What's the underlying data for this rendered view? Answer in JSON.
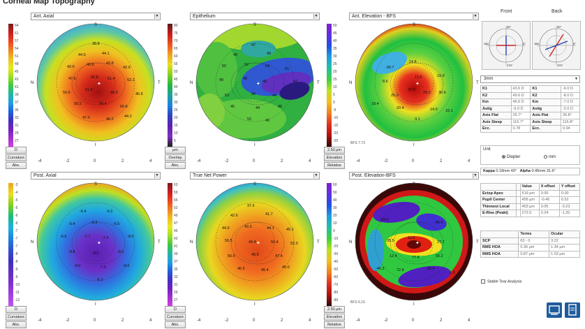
{
  "window_title": "Corneal Map Topography",
  "maps": [
    {
      "id": "ant-axial",
      "title": "Ant. Axial",
      "scale": [
        "64",
        "61",
        "57",
        "54",
        "51",
        "48",
        "45",
        "43",
        "41",
        "39",
        "37",
        "35",
        "33",
        "31",
        "29",
        "27"
      ],
      "buttons": [
        "D",
        "Curvature",
        "Abs."
      ],
      "cardinal": {
        "top": "S",
        "left": "N",
        "right": "T",
        "bottom": "I"
      },
      "labels": [
        "38.8",
        "44.5",
        "44.1",
        "42.6",
        "40.8",
        "43.8",
        "42.9",
        "47.6",
        "56.8",
        "51.4",
        "52.2",
        "50.6",
        "51.6",
        "49.9",
        "46.6",
        "50.2",
        "54.4",
        "50.8",
        "47.0",
        "46.2",
        "44.2"
      ],
      "axis_ticks": [
        "-4",
        "-2",
        "0",
        "2",
        "4"
      ],
      "note": ""
    },
    {
      "id": "epithelium",
      "title": "Epithelium",
      "scale": [
        "80",
        "75",
        "70",
        "65",
        "60",
        "55",
        "50",
        "45",
        "40",
        "35",
        "30",
        "25",
        "20",
        "15",
        "10",
        "5"
      ],
      "buttons": [
        "μm",
        "Overlay",
        "Abs."
      ],
      "cardinal": {
        "top": "S",
        "left": "N",
        "right": "T",
        "bottom": "I"
      },
      "labels": [
        "47",
        "49",
        "49",
        "50",
        "52",
        "54",
        "51",
        "49",
        "48",
        "48",
        "47",
        "53",
        "56",
        "48",
        "45",
        "44",
        "48",
        "52",
        "49"
      ],
      "axis_ticks": [
        "-4",
        "-2",
        "0",
        "2",
        "4"
      ],
      "note": ""
    },
    {
      "id": "ant-elevation",
      "title": "Ant. Elevation - BFS",
      "scale": [
        "50",
        "45",
        "40",
        "35",
        "30",
        "25",
        "20",
        "15",
        "10",
        "5",
        "0",
        "-5",
        "-10",
        "-15",
        "-20",
        "-25"
      ],
      "buttons": [
        "2.50 μm",
        "Elevation",
        "Relative"
      ],
      "cardinal": {
        "top": "S",
        "left": "N",
        "right": "T",
        "bottom": "I"
      },
      "labels": [
        "-26.7",
        "-14.8",
        "8.6",
        "11.0",
        "19.9",
        "32.0",
        "29.3",
        "25.0",
        "30.6",
        "20.4",
        "14.0",
        "18.4",
        "15.1",
        "3.1"
      ],
      "axis_ticks": [
        "-4",
        "-2",
        "0",
        "2",
        "4"
      ],
      "note": "BFS 7.73"
    },
    {
      "id": "post-axial",
      "title": "Post. Axial",
      "scale": [
        "-3",
        "-4",
        "-5",
        "-5",
        "-6",
        "-6",
        "-7",
        "-7",
        "-7",
        "-8",
        "-8",
        "-9",
        "-9",
        "-10",
        "-11",
        "-12"
      ],
      "buttons": [
        "D",
        "Curvature",
        "Abs."
      ],
      "cardinal": {
        "top": "S",
        "left": "N",
        "right": "T",
        "bottom": "I"
      },
      "labels": [
        "-6.4",
        "-6.2",
        "-6.4",
        "-5.9",
        "-6.5",
        "-6.6",
        "-7.7",
        "-7.4",
        "-8.5",
        "-8.8",
        "-8.2",
        "-8.1",
        "-8.0",
        "-7.3",
        "-6.6",
        "-6.3"
      ],
      "axis_ticks": [
        "-4",
        "-2",
        "0",
        "2",
        "4"
      ],
      "note": ""
    },
    {
      "id": "true-net-power",
      "title": "True Net Power",
      "scale": [
        "63",
        "59",
        "55",
        "52",
        "49",
        "47",
        "45",
        "43",
        "41",
        "39",
        "37",
        "35",
        "33",
        "31",
        "29",
        "27"
      ],
      "buttons": [
        "D",
        "Curvature",
        "Abs."
      ],
      "cardinal": {
        "top": "S",
        "left": "N",
        "right": "T",
        "bottom": "I"
      },
      "labels": [
        "37.5",
        "42.6",
        "41.7",
        "44.9",
        "43.3",
        "44.1",
        "45.1",
        "50.5",
        "49.4",
        "50.4",
        "52.3",
        "50.5",
        "48.8",
        "47.4",
        "46.5",
        "45.4",
        "45.0"
      ],
      "axis_ticks": [
        "-4",
        "-2",
        "0",
        "2",
        "4"
      ],
      "note": ""
    },
    {
      "id": "post-elevation",
      "title": "Post. Elevation-BFS",
      "scale": [
        "60",
        "50",
        "40",
        "30",
        "20",
        "10",
        "0",
        "-10",
        "-20",
        "-30",
        "-40",
        "-50",
        "-60",
        "-70",
        "-80",
        "-90"
      ],
      "buttons": [
        "2.50 μm",
        "Elevation",
        "Relative"
      ],
      "cardinal": {
        "top": "S",
        "left": "N",
        "right": "T",
        "bottom": "I"
      },
      "labels": [
        "-43.0",
        "-46.5",
        "35.5",
        "11.0",
        "27.7",
        "12.4",
        "77.8",
        "55.2",
        "72.8",
        "-25.4",
        "-46.3",
        "1.6"
      ],
      "axis_ticks": [
        "-4",
        "-2",
        "0",
        "2",
        "4"
      ],
      "note": "BFS 6.15"
    }
  ],
  "eyes": {
    "front_label": "Front",
    "back_label": "Back",
    "deg_top": "90°",
    "deg_bottom": "270°",
    "deg_left": "180",
    "deg_right": "0°"
  },
  "zone_select": "3mm",
  "keratometry": [
    [
      "K1",
      "43.6 D",
      "K1",
      "-6.0 D"
    ],
    [
      "K2",
      "49.6 D",
      "K2",
      "-8.0 D"
    ],
    [
      "Km",
      "46.6 D",
      "Km",
      "-7.0 D"
    ],
    [
      "Astig",
      "-6.0 D",
      "Astig",
      "-2.0 D"
    ],
    [
      "Axis Flat",
      "26.7°",
      "Axis Flat",
      "26.8°"
    ],
    [
      "Axis Steep",
      "116.7°",
      "Axis Steep",
      "116.8°"
    ],
    [
      "Ecc.",
      "0.78",
      "Ecc.",
      "0.94"
    ]
  ],
  "unit": {
    "label": "Unit",
    "options": [
      "Diopter",
      "mm"
    ],
    "selected": "Diopter"
  },
  "keyline": {
    "left_label": "Kappa",
    "left_value": "0.18mm 43°",
    "right_label": "Alpha",
    "right_value": "0.45mm 31.6°"
  },
  "thickness": {
    "headers": [
      "",
      "",
      "Value",
      "X offset",
      "Y offset"
    ],
    "rows": [
      [
        "Ectsp Apex",
        "",
        "519 μm",
        "0.00",
        "0.00"
      ],
      [
        "Pupil Center",
        "",
        "456 μm",
        "-0.46",
        "0.52"
      ],
      [
        "Thinnest Local",
        "",
        "453 μm",
        "0.05",
        "-0.23"
      ],
      [
        "E-Rise (Peaki)",
        "",
        "272.0",
        "0.24",
        "-1.20"
      ]
    ]
  },
  "aberration": {
    "headers": [
      "",
      "Terms",
      "Ocular"
    ],
    "rows": [
      [
        "SCP",
        "63 - 0",
        "3.22"
      ],
      [
        "RMS HOA",
        "0.36 μm",
        "1.34 μm"
      ],
      [
        "RMS HOA",
        "0.87 μm",
        "1.53 μm"
      ]
    ]
  },
  "checkbox_label": "Stable Tear Analysis",
  "colors": {
    "panel_border": "#bbbbbb",
    "icon_blue": "#1f5c9c"
  }
}
